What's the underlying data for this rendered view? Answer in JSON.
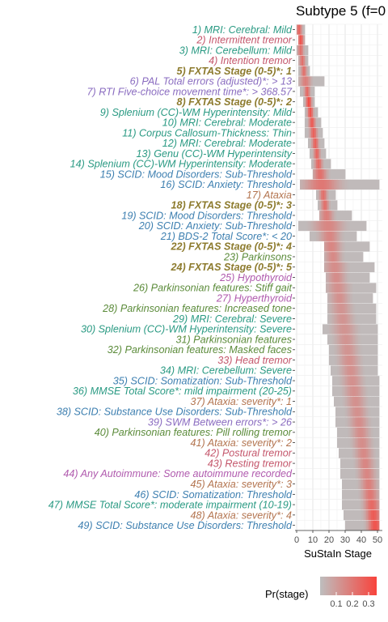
{
  "chart_data": {
    "type": "heatmap",
    "title": "Subtype 5 (f=0",
    "xlabel": "SuStaIn Stage",
    "ylabel": "",
    "xlim": [
      0,
      52
    ],
    "xticks": [
      0,
      10,
      20,
      30,
      40,
      50
    ],
    "grid": true,
    "legend": {
      "title": "Pr(stage)",
      "placement": "bottom-right",
      "ticks": [
        0.1,
        0.2,
        0.3
      ],
      "range": [
        0,
        0.35
      ],
      "color_low": "#bebebe",
      "color_high": "#f8433c"
    },
    "label_colors": {
      "mri": "#2a9a83",
      "tremor": "#c4566b",
      "fxtas": "#8d7b2e",
      "cognitive": "#8a6cc0",
      "scid": "#3d7fb0",
      "ataxia": "#b3744f",
      "parkinson": "#5b8b3a",
      "autoimmune": "#b05aae"
    },
    "events": [
      {
        "label": "1) MRI: Cerebral: Mild",
        "group": "mri",
        "bold": false,
        "span": [
          0,
          4
        ],
        "peak": 1,
        "pmax": 0.25
      },
      {
        "label": "2) Intermittent tremor",
        "group": "tremor",
        "bold": false,
        "span": [
          1,
          4
        ],
        "peak": 2,
        "pmax": 0.3
      },
      {
        "label": "3) MRI: Cerebellum: Mild",
        "group": "mri",
        "bold": false,
        "span": [
          0,
          6
        ],
        "peak": 2,
        "pmax": 0.22
      },
      {
        "label": "4) Intention tremor",
        "group": "tremor",
        "bold": false,
        "span": [
          1,
          6
        ],
        "peak": 3,
        "pmax": 0.22
      },
      {
        "label": "5) FXTAS Stage (0-5)*: 1",
        "group": "fxtas",
        "bold": true,
        "span": [
          1,
          7
        ],
        "peak": 4,
        "pmax": 0.22
      },
      {
        "label": "6) PAL Total errors (adjusted)*: > 13",
        "group": "cognitive",
        "bold": false,
        "span": [
          1,
          16
        ],
        "peak": 5,
        "pmax": 0.18
      },
      {
        "label": "7) RTI Five-choice movement time*: > 368.57",
        "group": "cognitive",
        "bold": false,
        "span": [
          2,
          10
        ],
        "peak": 6,
        "pmax": 0.24
      },
      {
        "label": "8) FXTAS Stage (0-5)*: 2",
        "group": "fxtas",
        "bold": true,
        "span": [
          4,
          10
        ],
        "peak": 7,
        "pmax": 0.32
      },
      {
        "label": "9) Splenium (CC)-WM Hyperintensity: Mild",
        "group": "mri",
        "bold": false,
        "span": [
          5,
          12
        ],
        "peak": 8,
        "pmax": 0.3
      },
      {
        "label": "10) MRI: Cerebral: Moderate",
        "group": "mri",
        "bold": false,
        "span": [
          5,
          14
        ],
        "peak": 9,
        "pmax": 0.28
      },
      {
        "label": "11) Corpus Callosum-Thickness: Thin",
        "group": "mri",
        "bold": false,
        "span": [
          5,
          15
        ],
        "peak": 10,
        "pmax": 0.26
      },
      {
        "label": "12) MRI: Cerebral: Moderate",
        "group": "mri",
        "bold": false,
        "span": [
          7,
          16
        ],
        "peak": 11,
        "pmax": 0.26
      },
      {
        "label": "13) Genu (CC)-WM Hyperintensity",
        "group": "mri",
        "bold": false,
        "span": [
          8,
          17
        ],
        "peak": 12,
        "pmax": 0.25
      },
      {
        "label": "14) Splenium (CC)-WM Hyperintensity: Moderate",
        "group": "mri",
        "bold": false,
        "span": [
          9,
          20
        ],
        "peak": 13,
        "pmax": 0.24
      },
      {
        "label": "15) SCID: Mood Disorders: Sub-Threshold",
        "group": "scid",
        "bold": false,
        "span": [
          10,
          29
        ],
        "peak": 14,
        "pmax": 0.22
      },
      {
        "label": "16) SCID: Anxiety: Threshold",
        "group": "scid",
        "bold": false,
        "span": [
          2,
          50
        ],
        "peak": 15,
        "pmax": 0.2
      },
      {
        "label": "17) Ataxia",
        "group": "ataxia",
        "bold": false,
        "span": [
          12,
          23
        ],
        "peak": 16,
        "pmax": 0.22
      },
      {
        "label": "18) FXTAS Stage (0-5)*: 3",
        "group": "fxtas",
        "bold": true,
        "span": [
          13,
          24
        ],
        "peak": 17,
        "pmax": 0.22
      },
      {
        "label": "19) SCID: Mood Disorders: Threshold",
        "group": "scid",
        "bold": false,
        "span": [
          14,
          33
        ],
        "peak": 18,
        "pmax": 0.18
      },
      {
        "label": "20) SCID: Anxiety: Sub-Threshold",
        "group": "scid",
        "bold": false,
        "span": [
          1,
          42
        ],
        "peak": 19,
        "pmax": 0.16
      },
      {
        "label": "21) BDS-2 Total Score*: < 20",
        "group": "scid",
        "bold": false,
        "span": [
          8,
          36
        ],
        "peak": 20,
        "pmax": 0.16
      },
      {
        "label": "22) FXTAS Stage (0-5)*: 4",
        "group": "fxtas",
        "bold": true,
        "span": [
          17,
          44
        ],
        "peak": 21,
        "pmax": 0.16
      },
      {
        "label": "23) Parkinsons",
        "group": "parkinson",
        "bold": false,
        "span": [
          17,
          40
        ],
        "peak": 22,
        "pmax": 0.15
      },
      {
        "label": "24) FXTAS Stage (0-5)*: 5",
        "group": "fxtas",
        "bold": true,
        "span": [
          17,
          47
        ],
        "peak": 23,
        "pmax": 0.14
      },
      {
        "label": "25) Hypothyroid",
        "group": "autoimmune",
        "bold": false,
        "span": [
          18,
          44
        ],
        "peak": 24,
        "pmax": 0.14
      },
      {
        "label": "26) Parkinsonian features: Stiff gait",
        "group": "parkinson",
        "bold": false,
        "span": [
          18,
          48
        ],
        "peak": 25,
        "pmax": 0.13
      },
      {
        "label": "27) Hyperthyroid",
        "group": "autoimmune",
        "bold": false,
        "span": [
          19,
          46
        ],
        "peak": 26,
        "pmax": 0.13
      },
      {
        "label": "28) Parkinsonian features: Increased tone",
        "group": "parkinson",
        "bold": false,
        "span": [
          19,
          48
        ],
        "peak": 27,
        "pmax": 0.12
      },
      {
        "label": "29) MRI: Cerebral: Severe",
        "group": "mri",
        "bold": false,
        "span": [
          19,
          48
        ],
        "peak": 28,
        "pmax": 0.12
      },
      {
        "label": "30) Splenium (CC)-WM Hyperintensity: Severe",
        "group": "mri",
        "bold": false,
        "span": [
          16,
          49
        ],
        "peak": 29,
        "pmax": 0.12
      },
      {
        "label": "31) Parkinsonian features",
        "group": "parkinson",
        "bold": false,
        "span": [
          19,
          49
        ],
        "peak": 30,
        "pmax": 0.12
      },
      {
        "label": "32) Parkinsonian features: Masked faces",
        "group": "parkinson",
        "bold": false,
        "span": [
          20,
          49
        ],
        "peak": 31,
        "pmax": 0.12
      },
      {
        "label": "33) Head tremor",
        "group": "tremor",
        "bold": false,
        "span": [
          20,
          49
        ],
        "peak": 32,
        "pmax": 0.13
      },
      {
        "label": "34) MRI: Cerebellum: Severe",
        "group": "mri",
        "bold": false,
        "span": [
          21,
          49
        ],
        "peak": 33,
        "pmax": 0.13
      },
      {
        "label": "35) SCID: Somatization: Sub-Threshold",
        "group": "scid",
        "bold": false,
        "span": [
          22,
          50
        ],
        "peak": 34,
        "pmax": 0.13
      },
      {
        "label": "36) MMSE Total Score*: mild impairment (20-25)",
        "group": "mri",
        "bold": false,
        "span": [
          22,
          50
        ],
        "peak": 35,
        "pmax": 0.13
      },
      {
        "label": "37) Ataxia: severity*: 1",
        "group": "ataxia",
        "bold": false,
        "span": [
          23,
          50
        ],
        "peak": 36,
        "pmax": 0.13
      },
      {
        "label": "38) SCID: Substance Use Disorders: Sub-Threshold",
        "group": "scid",
        "bold": false,
        "span": [
          24,
          50
        ],
        "peak": 37,
        "pmax": 0.13
      },
      {
        "label": "39) SWM Between errors*: > 26",
        "group": "cognitive",
        "bold": false,
        "span": [
          24,
          50
        ],
        "peak": 38,
        "pmax": 0.14
      },
      {
        "label": "40) Parkinsonian features: Pill rolling tremor",
        "group": "parkinson",
        "bold": false,
        "span": [
          25,
          50
        ],
        "peak": 39,
        "pmax": 0.14
      },
      {
        "label": "41) Ataxia: severity*: 2",
        "group": "ataxia",
        "bold": false,
        "span": [
          25,
          50
        ],
        "peak": 40,
        "pmax": 0.14
      },
      {
        "label": "42) Postural tremor",
        "group": "tremor",
        "bold": false,
        "span": [
          26,
          50
        ],
        "peak": 41,
        "pmax": 0.15
      },
      {
        "label": "43) Resting tremor",
        "group": "tremor",
        "bold": false,
        "span": [
          27,
          50
        ],
        "peak": 42,
        "pmax": 0.16
      },
      {
        "label": "44) Any Autoimmune: Some autoimmune recorded",
        "group": "autoimmune",
        "bold": false,
        "span": [
          27,
          50
        ],
        "peak": 43,
        "pmax": 0.16
      },
      {
        "label": "45) Ataxia: severity*: 3",
        "group": "ataxia",
        "bold": false,
        "span": [
          28,
          50
        ],
        "peak": 44,
        "pmax": 0.18
      },
      {
        "label": "46) SCID: Somatization: Threshold",
        "group": "scid",
        "bold": false,
        "span": [
          28,
          50
        ],
        "peak": 45,
        "pmax": 0.2
      },
      {
        "label": "47) MMSE Total Score*: moderate impairment (10-19)",
        "group": "mri",
        "bold": false,
        "span": [
          28,
          50
        ],
        "peak": 46,
        "pmax": 0.24
      },
      {
        "label": "48) Ataxia: severity*: 4",
        "group": "ataxia",
        "bold": false,
        "span": [
          29,
          50
        ],
        "peak": 47,
        "pmax": 0.28
      },
      {
        "label": "49) SCID: Substance Use Disorders: Threshold",
        "group": "scid",
        "bold": false,
        "span": [
          30,
          50
        ],
        "peak": 48,
        "pmax": 0.3
      }
    ]
  }
}
